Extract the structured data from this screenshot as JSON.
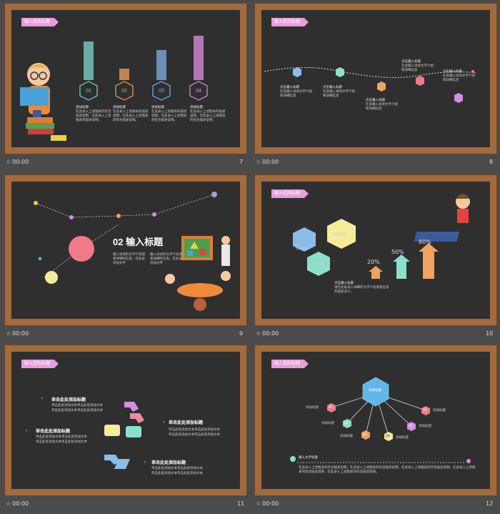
{
  "slides": [
    {
      "number": "7",
      "time": "00:00",
      "tag": "输入您的标题",
      "bars": [
        {
          "label": "01",
          "color": "#7fd6c9"
        },
        {
          "label": "02",
          "color": "#f0a25e"
        },
        {
          "label": "03",
          "color": "#7fb0e8"
        },
        {
          "label": "04",
          "color": "#e38fe3"
        }
      ],
      "items": [
        {
          "title": "添加标题",
          "body": "在此录入上述图表的综合描述说明，在此录入上述图表的描述说明。"
        },
        {
          "title": "添加标题",
          "body": "在此录入上述图表的描述说明，在此录入上述图表的综合描述说明。"
        },
        {
          "title": "添加标题",
          "body": "在此录入上述图表的描述说明，在此录入上述图表的综合描述说明。"
        },
        {
          "title": "添加标题",
          "body": "在此录入上述图表的描述说明，在此录入上述图表的综合描述说明。"
        }
      ]
    },
    {
      "number": "8",
      "time": "00:00",
      "points": [
        {
          "title": "点击输入标题",
          "body": "在此输入详述文字介绍和详细信息"
        },
        {
          "title": "点击输入标题",
          "body": "在此输入详述文字介绍和详细信息"
        },
        {
          "title": "点击输入标题",
          "body": "在此输入详述文字介绍和详细信息"
        },
        {
          "title": "点击输入标题",
          "body": "在此输入详述文字介绍和详细信息"
        },
        {
          "title": "点击输入标题",
          "body": "在此输入详述文字介绍和详细信息"
        }
      ]
    },
    {
      "number": "9",
      "time": "00:00",
      "title": "02 输入标题",
      "bullets": [
        "输入详述的文字介绍或者详细的信息，在此处添加文字",
        "输入详述的文字介绍或者详细的信息，在此处添加文字"
      ]
    },
    {
      "number": "10",
      "time": "00:00",
      "tag": "输入您的标题",
      "hex_labels": [
        "添加标题",
        "添加标题",
        "添加标题"
      ],
      "percents": [
        "20%",
        "50%",
        "80%"
      ],
      "caption_title": "点击输入标题",
      "caption_body": "请在此处录入详细的文字介绍或者信息的相关含义。"
    },
    {
      "number": "11",
      "time": "00:00",
      "tag": "输入您的标题",
      "items": [
        {
          "title": "单击此处添加标题",
          "body": [
            "单击此处添加文本单击此处添加文本",
            "单击此处添加文本单击此处添加文本"
          ]
        },
        {
          "title": "单击此处添加标题",
          "body": [
            "单击此处添加文本单击此处添加文本",
            "单击此处添加文本单击此处添加文本"
          ]
        },
        {
          "title": "单击此处添加标题",
          "body": [
            "单击此处添加文本单击此处添加文本",
            "单击此处添加文本单击此处添加文本"
          ]
        },
        {
          "title": "单击此处添加标题",
          "body": [
            "单击此处添加文本单击此处添加文本",
            "单击此处添加文本单击此处添加文本"
          ]
        }
      ]
    },
    {
      "number": "12",
      "time": "00:00",
      "tag": "输入您的标题",
      "center": "添加标题",
      "nodes": [
        {
          "id": "01",
          "label": "添加标题"
        },
        {
          "id": "02",
          "label": "添加标题"
        },
        {
          "id": "03",
          "label": "添加标题"
        },
        {
          "id": "04",
          "label": "添加标题"
        },
        {
          "id": "05",
          "label": "添加标题"
        },
        {
          "id": "06",
          "label": "添加标题"
        }
      ],
      "footer_title": "输入文字标题",
      "footer_body": "在此录入上述图表的综合描述说明，在此录入上述图表的综合描述说明，在此录入上述图表的综合描述说明。在此录入上述图表的综合描述说明，在此录入上述图表的综合描述说明。"
    }
  ]
}
